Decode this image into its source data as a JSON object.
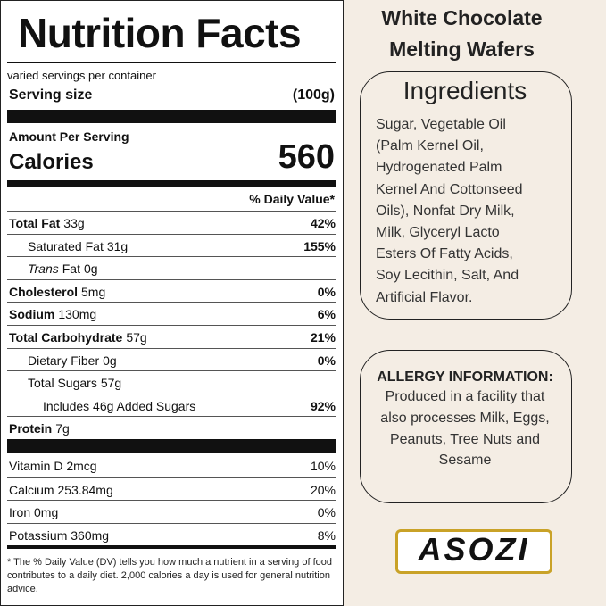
{
  "label": {
    "title": "Nutrition Facts",
    "servings": "varied servings per container",
    "serving_size_label": "Serving size",
    "serving_size": "(100g)",
    "amount_per_serving": "Amount Per Serving",
    "calories_label": "Calories",
    "calories": "560",
    "daily_value_header": "% Daily Value*",
    "nutrients": [
      {
        "name": "Total Fat",
        "amount": "33g",
        "dv": "42%",
        "level": 0
      },
      {
        "name": "Saturated Fat",
        "amount": "31g",
        "dv": "155%",
        "level": 1
      },
      {
        "name_italic": "Trans",
        "name": "Fat",
        "amount": "0g",
        "level": 1
      },
      {
        "name": "Cholesterol",
        "amount": "5mg",
        "dv": "0%",
        "level": 0
      },
      {
        "name": "Sodium",
        "amount": "130mg",
        "dv": "6%",
        "level": 0
      },
      {
        "name": "Total Carbohydrate",
        "amount": "57g",
        "dv": "21%",
        "level": 0
      },
      {
        "name": "Dietary Fiber",
        "amount": "0g",
        "dv": "0%",
        "level": 1
      },
      {
        "name": "Total Sugars",
        "amount": "57g",
        "level": 1
      },
      {
        "name": "Includes 46g Added Sugars",
        "dv": "92%",
        "level": 2
      },
      {
        "name": "Protein",
        "amount": "7g",
        "level": 0
      }
    ],
    "vitamins": [
      {
        "name": "Vitamin D 2mcg",
        "dv": "10%"
      },
      {
        "name": "Calcium 253.84mg",
        "dv": "20%"
      },
      {
        "name": "Iron 0mg",
        "dv": "0%"
      },
      {
        "name": "Potassium 360mg",
        "dv": "8%"
      }
    ],
    "footnote": "* The % Daily Value (DV) tells you how much a nutrient in a serving of food contributes to a daily diet. 2,000 calories a day is used for general nutrition advice."
  },
  "product": {
    "title_line1": "White Chocolate",
    "title_line2": "Melting Wafers"
  },
  "ingredients": {
    "title": "Ingredients",
    "lines": [
      "Sugar, Vegetable Oil",
      "(Palm Kernel Oil,",
      "Hydrogenated Palm",
      "Kernel And Cottonseed",
      "Oils), Nonfat Dry Milk,",
      "Milk, Glyceryl Lacto",
      "Esters Of Fatty Acids,",
      "Soy Lecithin, Salt, And",
      "Artificial Flavor."
    ]
  },
  "allergy": {
    "title": "ALLERGY INFORMATION:",
    "lines": [
      "Produced in a facility that",
      "also processes Milk, Eggs,",
      "Peanuts, Tree Nuts and",
      "Sesame"
    ]
  },
  "brand": {
    "logo": "ASOZI"
  }
}
